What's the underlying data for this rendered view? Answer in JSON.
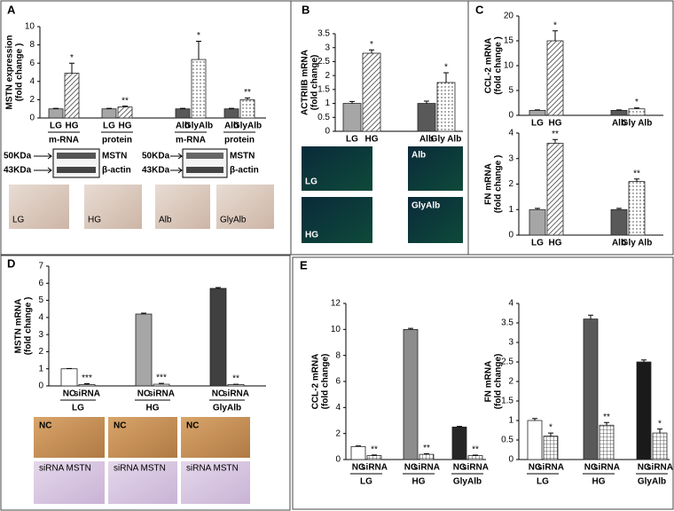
{
  "chart_data": [
    {
      "type": "bar",
      "panel": "A",
      "y_label": [
        "MSTN expression",
        "(fold change )"
      ],
      "categories": [
        "LG",
        "HG",
        "LG",
        "HG",
        "Alb",
        "GlyAlb",
        "Alb",
        "GlyAlb"
      ],
      "values": [
        1,
        4.9,
        1,
        1.2,
        1,
        6.4,
        1,
        2.0
      ],
      "errors": [
        0.05,
        1.1,
        0.05,
        0.1,
        0.05,
        2.0,
        0.05,
        0.2
      ],
      "colors": [
        "#a6a6a6",
        "hatch",
        "#a6a6a6",
        "hatch",
        "#595959",
        "dots",
        "#595959",
        "dots"
      ],
      "sig": [
        null,
        "*",
        null,
        "**",
        null,
        "*",
        null,
        "**"
      ],
      "groups": [
        "m-RNA",
        "protein",
        "m-RNA",
        "protein"
      ],
      "ylim": [
        0,
        10
      ],
      "yticks": [
        0,
        2,
        4,
        6,
        8,
        10
      ],
      "blots": [
        {
          "markers": [
            "50KDa",
            "43KDa"
          ],
          "proteins": [
            "MSTN",
            "β-actin"
          ]
        },
        {
          "markers": [
            "50KDa",
            "43KDa"
          ],
          "proteins": [
            "MSTN",
            "β-actin"
          ]
        }
      ],
      "images": [
        "LG",
        "HG",
        "Alb",
        "GlyAlb"
      ]
    },
    {
      "type": "bar",
      "panel": "B",
      "y_label": [
        "ACTRIIB mRNA",
        "(fold change)"
      ],
      "categories": [
        "LG",
        "HG",
        "Alb",
        "Gly Alb"
      ],
      "values": [
        1,
        2.8,
        1,
        1.75
      ],
      "errors": [
        0.07,
        0.12,
        0.08,
        0.35
      ],
      "colors": [
        "#a6a6a6",
        "hatch",
        "#595959",
        "dots"
      ],
      "sig": [
        null,
        "*",
        null,
        "*"
      ],
      "ylim": [
        0,
        3.5
      ],
      "yticks": [
        0,
        0.5,
        1,
        1.5,
        2,
        2.5,
        3,
        3.5
      ],
      "images": [
        "LG",
        "Alb",
        "HG",
        "GlyAlb"
      ]
    },
    {
      "type": "bar",
      "panel": "C",
      "y_label": [
        "CCL-2 mRNA",
        "(fold change )"
      ],
      "categories": [
        "LG",
        "HG",
        "Alb",
        "Gly Alb"
      ],
      "values": [
        1,
        15,
        1,
        1.3
      ],
      "errors": [
        0.1,
        2,
        0.1,
        0.2
      ],
      "colors": [
        "#a6a6a6",
        "hatch",
        "#595959",
        "dots"
      ],
      "sig": [
        null,
        "*",
        null,
        "*"
      ],
      "ylim": [
        0,
        20
      ],
      "yticks": [
        0,
        5,
        10,
        15,
        20
      ]
    },
    {
      "type": "bar",
      "y_label": [
        "FN mRNA",
        "(fold change )"
      ],
      "categories": [
        "LG",
        "HG",
        "Alb",
        "Gly Alb"
      ],
      "values": [
        1,
        3.6,
        1,
        2.1
      ],
      "errors": [
        0.05,
        0.15,
        0.05,
        0.1
      ],
      "colors": [
        "#a6a6a6",
        "hatch",
        "#595959",
        "dots"
      ],
      "sig": [
        null,
        "**",
        null,
        "**"
      ],
      "ylim": [
        0,
        4
      ],
      "yticks": [
        0,
        1,
        2,
        3,
        4
      ]
    },
    {
      "type": "bar",
      "panel": "D",
      "y_label": [
        "MSTN mRNA",
        "(fold change )"
      ],
      "categories": [
        "NC",
        "siRNA",
        "NC",
        "siRNA",
        "NC",
        "siRNA"
      ],
      "values": [
        1,
        0.08,
        4.2,
        0.1,
        5.7,
        0.08
      ],
      "errors": [
        0.02,
        0.05,
        0.05,
        0.05,
        0.05,
        0.02
      ],
      "colors": [
        "#ffffff",
        "#ffffff",
        "#a6a6a6",
        "#ffffff",
        "#404040",
        "#ffffff"
      ],
      "sig": [
        null,
        "***",
        null,
        "***",
        null,
        "**"
      ],
      "groups": [
        "LG",
        "HG",
        "GlyAlb"
      ],
      "ylim": [
        0,
        7
      ],
      "yticks": [
        0,
        1,
        2,
        3,
        4,
        5,
        6,
        7
      ],
      "images": [
        "NC",
        "NC",
        "NC",
        "siRNA MSTN",
        "siRNA MSTN",
        "siRNA MSTN"
      ]
    },
    {
      "type": "bar",
      "panel": "E",
      "y_label": [
        "CCL-2 mRNA",
        "(fold change)"
      ],
      "categories": [
        "NC",
        "siRNA",
        "NC",
        "siRNA",
        "NC",
        "siRNA"
      ],
      "values": [
        1,
        0.3,
        10,
        0.4,
        2.5,
        0.3
      ],
      "errors": [
        0.05,
        0.05,
        0.08,
        0.05,
        0.05,
        0.04
      ],
      "colors": [
        "#ffffff",
        "grid",
        "#8c8c8c",
        "grid",
        "#262626",
        "grid"
      ],
      "sig": [
        null,
        "**",
        null,
        "**",
        null,
        "**"
      ],
      "groups": [
        "LG",
        "HG",
        "GlyAlb"
      ],
      "ylim": [
        0,
        12
      ],
      "yticks": [
        0,
        2,
        4,
        6,
        8,
        10,
        12
      ]
    },
    {
      "type": "bar",
      "y_label": [
        "FN mRNA",
        "(fold change)"
      ],
      "categories": [
        "NC",
        "siRNA",
        "NC",
        "siRNA",
        "NC",
        "siRNA"
      ],
      "values": [
        1,
        0.6,
        3.6,
        0.88,
        2.5,
        0.68
      ],
      "errors": [
        0.05,
        0.08,
        0.1,
        0.07,
        0.05,
        0.1
      ],
      "colors": [
        "#ffffff",
        "grid",
        "#595959",
        "grid",
        "#1a1a1a",
        "grid"
      ],
      "sig": [
        null,
        "*",
        null,
        "**",
        null,
        "*"
      ],
      "groups": [
        "LG",
        "HG",
        "GlyAlb"
      ],
      "ylim": [
        0,
        4
      ],
      "yticks": [
        0,
        0.5,
        1,
        1.5,
        2,
        2.5,
        3,
        3.5,
        4
      ]
    }
  ]
}
